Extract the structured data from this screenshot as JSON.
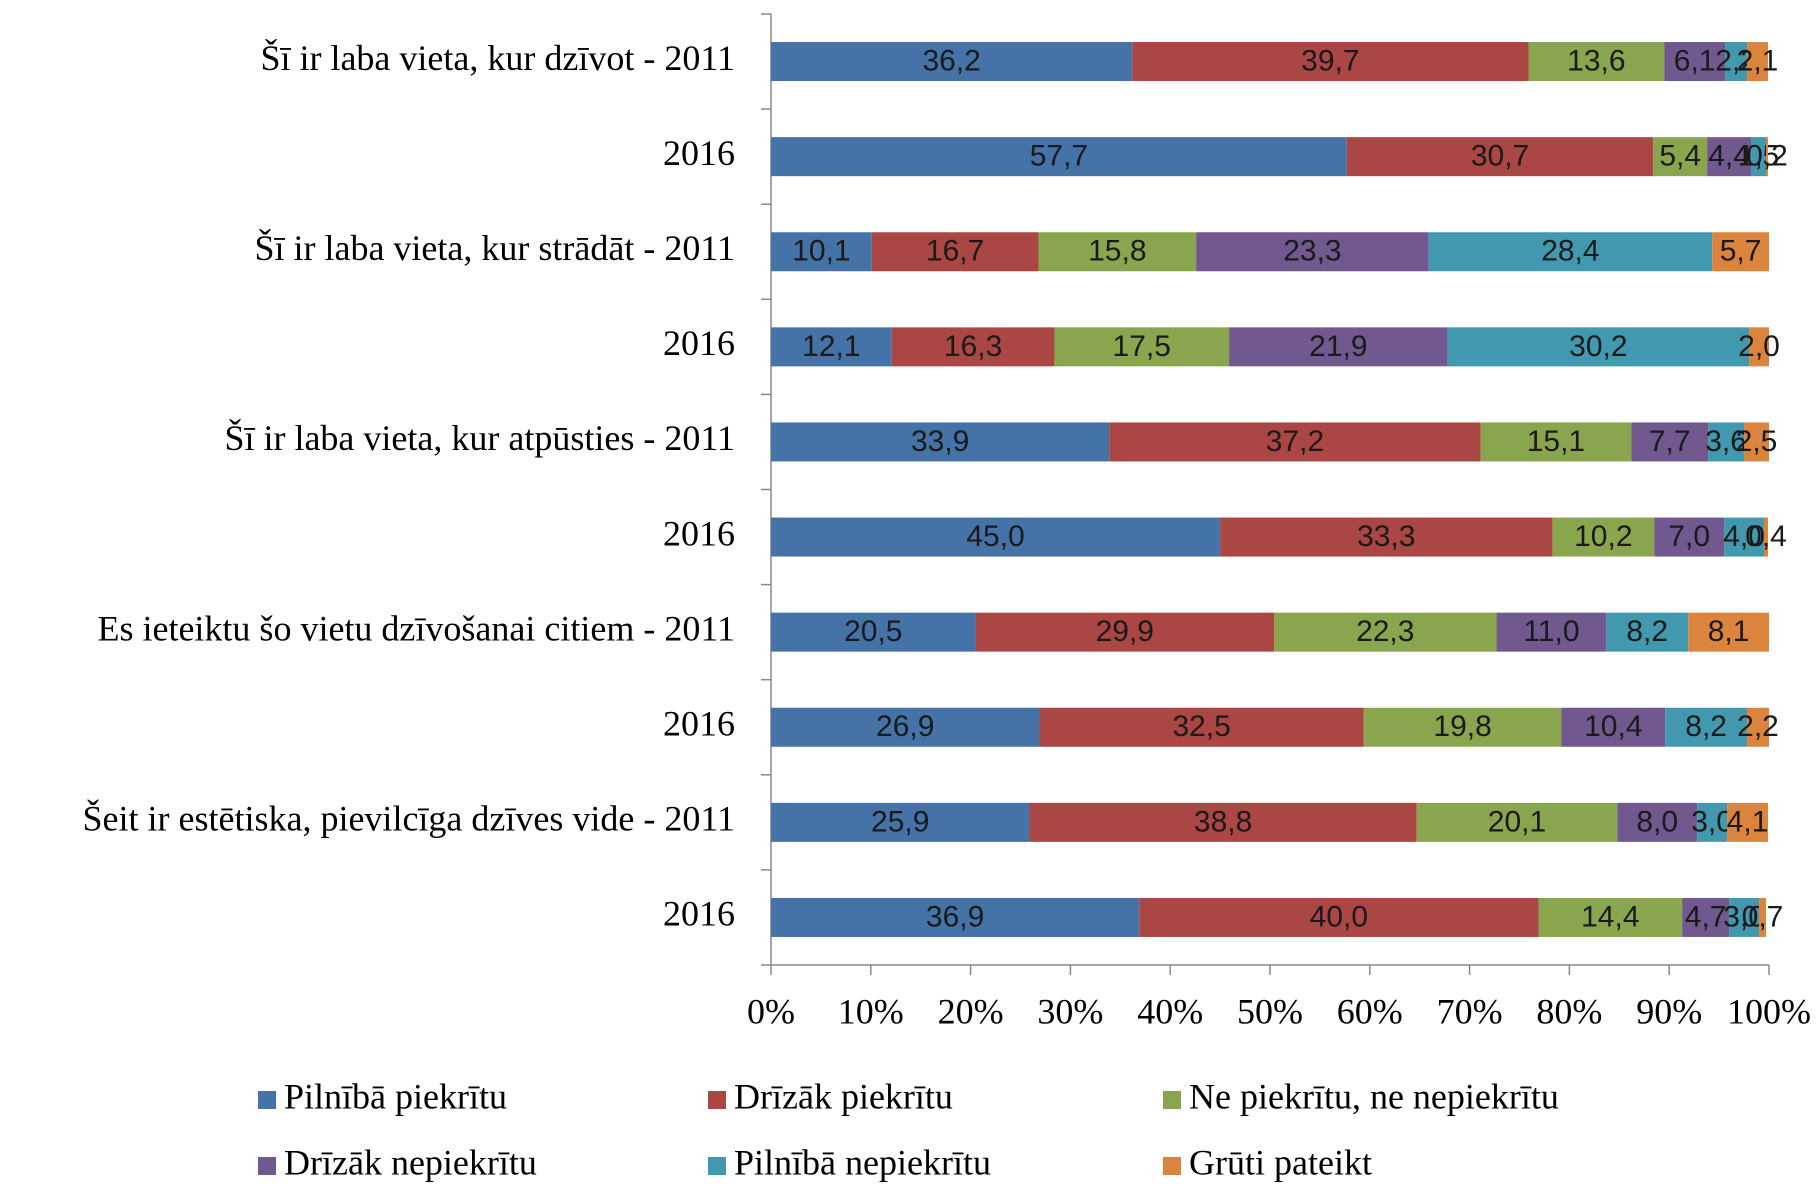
{
  "chart_data": {
    "type": "stacked_bar_horizontal",
    "categories": [
      "Šī ir laba vieta, kur dzīvot - 2011",
      "2016",
      "Šī ir laba vieta, kur strādāt - 2011",
      "2016",
      "Šī ir laba vieta, kur atpūsties - 2011",
      "2016",
      "Es ieteiktu šo vietu dzīvošanai citiem - 2011",
      "2016",
      "Šeit ir estētiska, pievilcīga dzīves vide - 2011",
      "2016"
    ],
    "series": [
      {
        "name": "Pilnībā piekrītu",
        "color": "#4572a7",
        "values": [
          36.2,
          57.7,
          10.1,
          12.1,
          33.9,
          45.0,
          20.5,
          26.9,
          25.9,
          36.9
        ],
        "value_labels": [
          "36,2",
          "57,7",
          "10,1",
          "12,1",
          "33,9",
          "45,0",
          "20,5",
          "26,9",
          "25,9",
          "36,9"
        ]
      },
      {
        "name": "Drīzāk piekrītu",
        "color": "#aa4643",
        "values": [
          39.7,
          30.7,
          16.7,
          16.3,
          37.2,
          33.3,
          29.9,
          32.5,
          38.8,
          40.0
        ],
        "value_labels": [
          "39,7",
          "30,7",
          "16,7",
          "16,3",
          "37,2",
          "33,3",
          "29,9",
          "32,5",
          "38,8",
          "40,0"
        ]
      },
      {
        "name": "Ne piekrītu, ne nepiekrītu",
        "color": "#89a54e",
        "values": [
          13.6,
          5.4,
          15.8,
          17.5,
          15.1,
          10.2,
          22.3,
          19.8,
          20.1,
          14.4
        ],
        "value_labels": [
          "13,6",
          "5,4",
          "15,8",
          "17,5",
          "15,1",
          "10,2",
          "22,3",
          "19,8",
          "20,1",
          "14,4"
        ]
      },
      {
        "name": "Drīzāk nepiekrītu",
        "color": "#71588f",
        "values": [
          6.1,
          4.4,
          23.3,
          21.9,
          7.7,
          7.0,
          11.0,
          10.4,
          8.0,
          4.7
        ],
        "value_labels": [
          "6,1",
          "4,4",
          "23,3",
          "21,9",
          "7,7",
          "7,0",
          "11,0",
          "10,4",
          "8,0",
          "4,7"
        ]
      },
      {
        "name": "Pilnībā nepiekrītu",
        "color": "#4198af",
        "values": [
          2.2,
          1.5,
          28.4,
          30.2,
          3.6,
          4.0,
          8.2,
          8.2,
          3.0,
          3.0
        ],
        "value_labels": [
          "2,2",
          "1,5",
          "28,4",
          "30,2",
          "3,6",
          "4,0",
          "8,2",
          "8,2",
          "3,0",
          "3,0"
        ]
      },
      {
        "name": "Grūti pateikt",
        "color": "#db843d",
        "values": [
          2.1,
          0.2,
          5.7,
          2.0,
          2.5,
          0.4,
          8.1,
          2.2,
          4.1,
          0.7
        ],
        "value_labels": [
          "2,1",
          "0,2",
          "5,7",
          "2,0",
          "2,5",
          "0,4",
          "8,1",
          "2,2",
          "4,1",
          "0,7"
        ]
      }
    ],
    "xlim": [
      0,
      100
    ],
    "xticks": [
      {
        "value": 0,
        "label": "0%"
      },
      {
        "value": 10,
        "label": "10%"
      },
      {
        "value": 20,
        "label": "20%"
      },
      {
        "value": 30,
        "label": "30%"
      },
      {
        "value": 40,
        "label": "40%"
      },
      {
        "value": 50,
        "label": "50%"
      },
      {
        "value": 60,
        "label": "60%"
      },
      {
        "value": 70,
        "label": "70%"
      },
      {
        "value": 80,
        "label": "80%"
      },
      {
        "value": 90,
        "label": "90%"
      },
      {
        "value": 100,
        "label": "100%"
      }
    ],
    "grid": false,
    "legend": "bottom"
  }
}
